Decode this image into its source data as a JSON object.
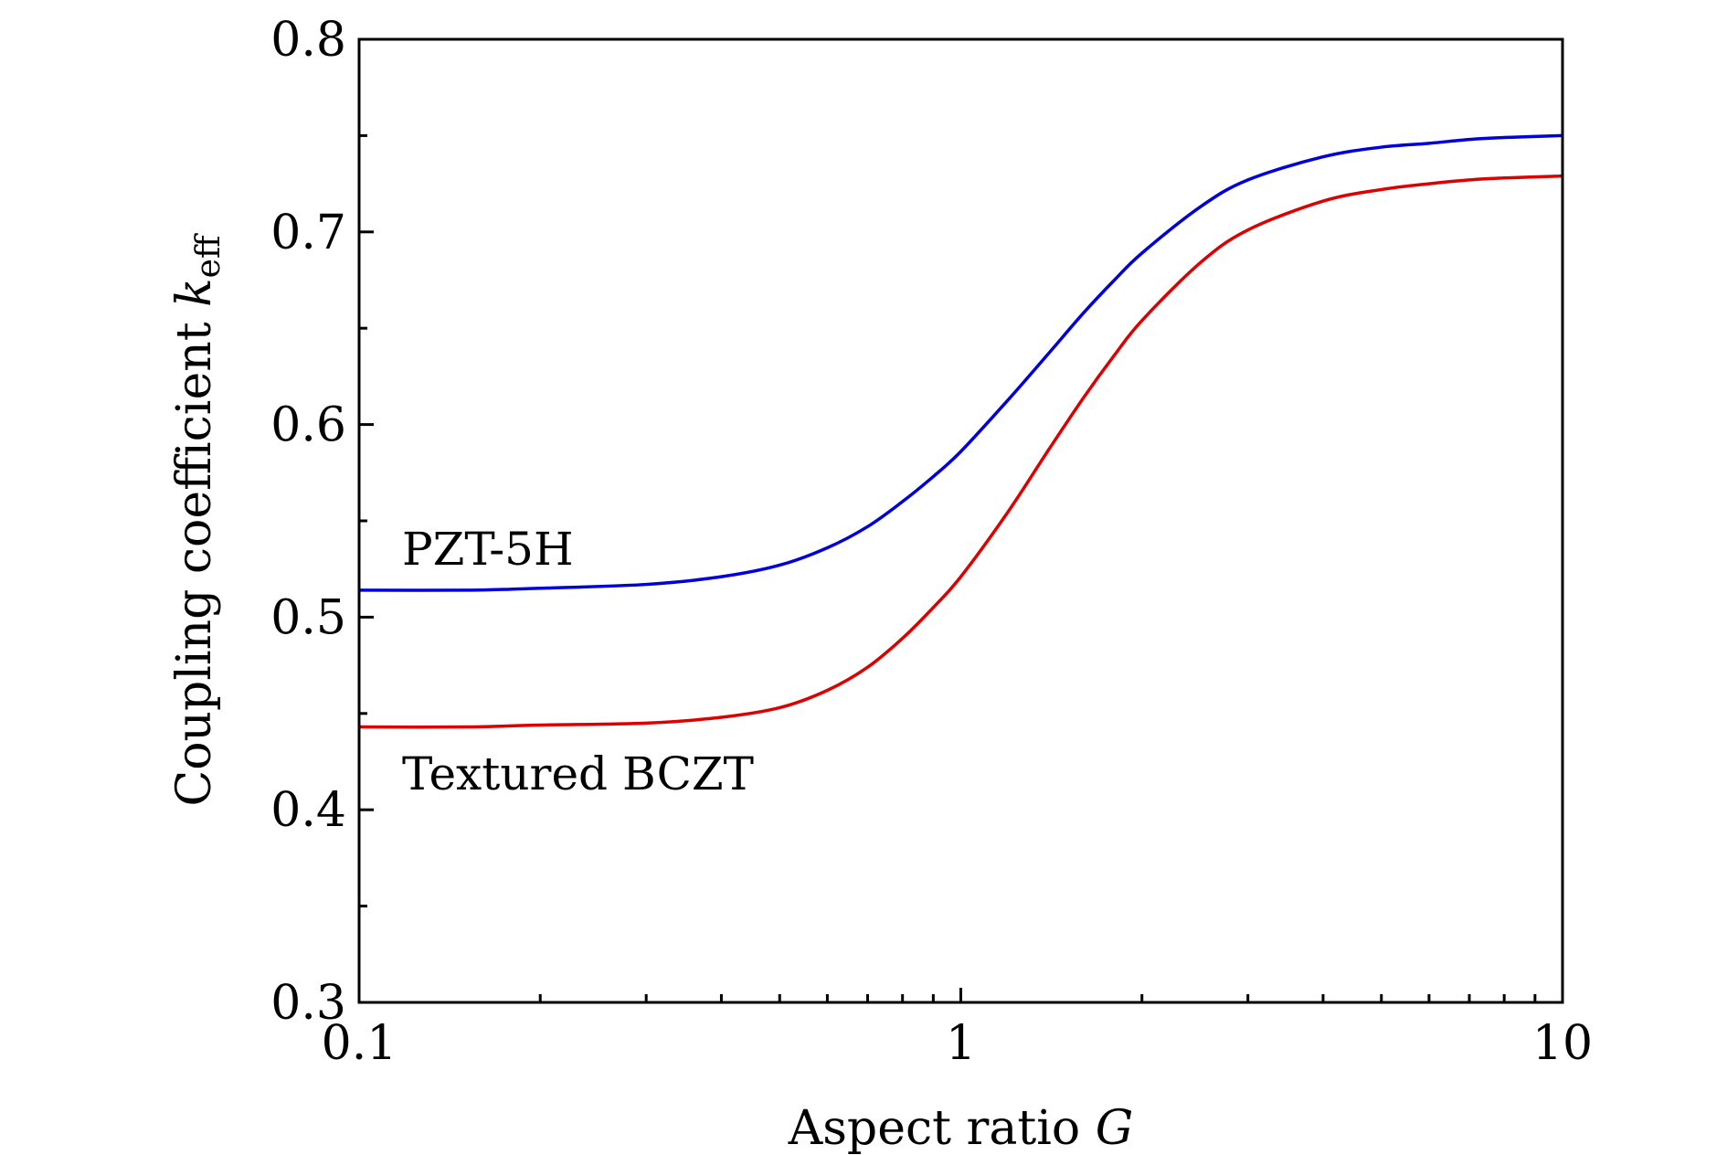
{
  "chart_data": {
    "type": "line",
    "title": "",
    "xscale": "log",
    "xlim": [
      0.1,
      10
    ],
    "ylim": [
      0.3,
      0.8
    ],
    "xlabel": {
      "text": "Aspect ratio ",
      "var": "G"
    },
    "ylabel": {
      "text": "Coupling coefficient ",
      "var": "k",
      "sub": "eff"
    },
    "x_ticks": [
      {
        "value": 0.1,
        "label": "0.1"
      },
      {
        "value": 1,
        "label": "1"
      },
      {
        "value": 10,
        "label": "10"
      }
    ],
    "y_ticks": [
      {
        "value": 0.3,
        "label": "0.3"
      },
      {
        "value": 0.4,
        "label": "0.4"
      },
      {
        "value": 0.5,
        "label": "0.5"
      },
      {
        "value": 0.6,
        "label": "0.6"
      },
      {
        "value": 0.7,
        "label": "0.7"
      },
      {
        "value": 0.8,
        "label": "0.8"
      }
    ],
    "y_minor_ticks": [
      0.35,
      0.45,
      0.55,
      0.65,
      0.75
    ],
    "series": [
      {
        "name": "PZT-5H",
        "color": "#0000dd",
        "x": [
          0.1,
          0.15,
          0.2,
          0.3,
          0.4,
          0.5,
          0.6,
          0.7,
          0.8,
          0.9,
          1.0,
          1.2,
          1.4,
          1.6,
          1.8,
          2.0,
          2.5,
          3.0,
          4.0,
          5.0,
          6.0,
          7.0,
          8.0,
          10.0
        ],
        "values": [
          0.514,
          0.514,
          0.515,
          0.517,
          0.521,
          0.527,
          0.536,
          0.547,
          0.56,
          0.573,
          0.586,
          0.613,
          0.637,
          0.658,
          0.675,
          0.689,
          0.713,
          0.727,
          0.739,
          0.744,
          0.746,
          0.748,
          0.749,
          0.75
        ]
      },
      {
        "name": "Textured BCZT",
        "color": "#dd0000",
        "x": [
          0.1,
          0.15,
          0.2,
          0.3,
          0.4,
          0.5,
          0.6,
          0.7,
          0.8,
          0.9,
          1.0,
          1.2,
          1.4,
          1.6,
          1.8,
          2.0,
          2.5,
          3.0,
          4.0,
          5.0,
          6.0,
          7.0,
          8.0,
          10.0
        ],
        "values": [
          0.443,
          0.443,
          0.444,
          0.445,
          0.448,
          0.453,
          0.462,
          0.474,
          0.489,
          0.505,
          0.521,
          0.555,
          0.587,
          0.614,
          0.636,
          0.654,
          0.684,
          0.701,
          0.716,
          0.722,
          0.725,
          0.727,
          0.728,
          0.729
        ]
      }
    ]
  }
}
